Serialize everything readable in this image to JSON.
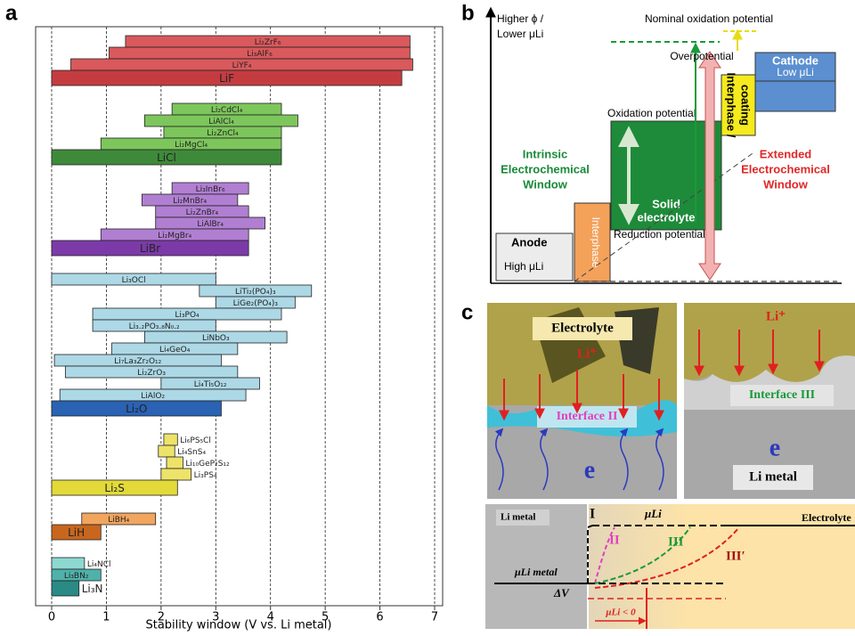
{
  "panel_labels": [
    "a",
    "b",
    "c"
  ],
  "chart_data": {
    "type": "range-bar",
    "xlabel": "Stability window (V vs. Li metal)",
    "xlim": [
      0,
      7
    ],
    "xticks": [
      0,
      1,
      2,
      3,
      4,
      5,
      6,
      7
    ],
    "grid": true,
    "groups": [
      {
        "bars": [
          {
            "name": "Li₂ZrF₆",
            "low": 1.35,
            "high": 6.55,
            "color": "#d9595c"
          },
          {
            "name": "Li₃AlF₆",
            "low": 1.05,
            "high": 6.55,
            "color": "#d9595c"
          },
          {
            "name": "LiYF₄",
            "low": 0.35,
            "high": 6.6,
            "color": "#d9595c"
          },
          {
            "name": "LiF",
            "low": 0,
            "high": 6.4,
            "color": "#c43c40"
          }
        ]
      },
      {
        "bars": [
          {
            "name": "Li₂CdCl₄",
            "low": 2.2,
            "high": 4.2,
            "color": "#7dc65c"
          },
          {
            "name": "LiAlCl₄",
            "low": 1.7,
            "high": 4.5,
            "color": "#7dc65c"
          },
          {
            "name": "Li₂ZnCl₄",
            "low": 2.05,
            "high": 4.2,
            "color": "#7dc65c"
          },
          {
            "name": "Li₂MgCl₄",
            "low": 0.9,
            "high": 4.2,
            "color": "#7dc65c"
          },
          {
            "name": "LiCl",
            "low": 0,
            "high": 4.2,
            "color": "#3e8a3a"
          }
        ]
      },
      {
        "bars": [
          {
            "name": "Li₃InBr₆",
            "low": 2.2,
            "high": 3.6,
            "color": "#b17fd2"
          },
          {
            "name": "Li₂MnBr₄",
            "low": 1.65,
            "high": 3.4,
            "color": "#b17fd2"
          },
          {
            "name": "Li₂ZnBr₄",
            "low": 1.9,
            "high": 3.6,
            "color": "#b17fd2"
          },
          {
            "name": "LiAlBr₄",
            "low": 1.9,
            "high": 3.9,
            "color": "#b17fd2"
          },
          {
            "name": "Li₂MgBr₄",
            "low": 0.9,
            "high": 3.6,
            "color": "#b17fd2"
          },
          {
            "name": "LiBr",
            "low": 0,
            "high": 3.6,
            "color": "#7b3aa8"
          }
        ]
      },
      {
        "bars": [
          {
            "name": "Li₃OCl",
            "low": 0,
            "high": 3.0,
            "color": "#add8e6"
          },
          {
            "name": "LiTi₂(PO₄)₃",
            "low": 2.7,
            "high": 4.75,
            "color": "#add8e6"
          },
          {
            "name": "LiGe₂(PO₄)₃",
            "low": 3.0,
            "high": 4.45,
            "color": "#add8e6"
          },
          {
            "name": "Li₃PO₄",
            "low": 0.75,
            "high": 4.2,
            "color": "#add8e6"
          },
          {
            "name": "Li₃.₂PO₃.₈N₀.₂",
            "low": 0.75,
            "high": 3.0,
            "color": "#add8e6"
          },
          {
            "name": "LiNbO₃",
            "low": 1.7,
            "high": 4.3,
            "color": "#add8e6"
          },
          {
            "name": "Li₄GeO₄",
            "low": 1.1,
            "high": 3.4,
            "color": "#add8e6"
          },
          {
            "name": "Li₇La₃Zr₂O₁₂",
            "low": 0.05,
            "high": 3.1,
            "color": "#add8e6"
          },
          {
            "name": "Li₂ZrO₃",
            "low": 0.25,
            "high": 3.4,
            "color": "#add8e6"
          },
          {
            "name": "Li₄Ti₅O₁₂",
            "low": 2.0,
            "high": 3.8,
            "color": "#add8e6"
          },
          {
            "name": "LiAlO₂",
            "low": 0.15,
            "high": 3.55,
            "color": "#add8e6"
          },
          {
            "name": "Li₂O",
            "low": 0,
            "high": 3.1,
            "color": "#2a62b4"
          }
        ]
      },
      {
        "bars": [
          {
            "name": "Li₆PS₅Cl",
            "low": 2.05,
            "high": 2.3,
            "color": "#eee36a"
          },
          {
            "name": "Li₄SnS₄",
            "low": 1.95,
            "high": 2.25,
            "color": "#eee36a"
          },
          {
            "name": "Li₁₀GeP₂S₁₂",
            "low": 2.1,
            "high": 2.4,
            "color": "#eee36a"
          },
          {
            "name": "Li₃PS₄",
            "low": 2.0,
            "high": 2.55,
            "color": "#eee36a"
          },
          {
            "name": "Li₂S",
            "low": 0,
            "high": 2.3,
            "color": "#e3da3a"
          }
        ]
      },
      {
        "bars": [
          {
            "name": "LiBH₄",
            "low": 0.55,
            "high": 1.9,
            "color": "#f2a55e"
          },
          {
            "name": "LiH",
            "low": 0,
            "high": 0.9,
            "color": "#c8661e"
          }
        ]
      },
      {
        "bars": [
          {
            "name": "Li₄NCl",
            "low": 0,
            "high": 0.6,
            "color": "#8ed8d2"
          },
          {
            "name": "Li₃BN₂",
            "low": 0,
            "high": 0.9,
            "color": "#4fb2aa"
          },
          {
            "name": "Li₃N",
            "low": 0,
            "high": 0.5,
            "color": "#2a8a86"
          }
        ]
      }
    ]
  },
  "diagram_b": {
    "axis_label": [
      "Higher ϕ /",
      "Lower μLi"
    ],
    "nominal": "Nominal oxidation potential",
    "overpotential": "Overpotential",
    "cathode": "Cathode",
    "cathode_sub": "Low μLi",
    "coating": [
      "Interphase /",
      "coating"
    ],
    "oxidation": "Oxidation potential",
    "intrinsic": [
      "Intrinsic",
      "Electrochemical",
      "Window"
    ],
    "extended": [
      "Extended",
      "Electrochemical",
      "Window"
    ],
    "electrolyte": [
      "Solid",
      "electrolyte"
    ],
    "interphase": "Interphase",
    "reduction": "Reduction potential",
    "anode": "Anode",
    "anode_sub": "High μLi"
  },
  "diagram_c": {
    "electrolyte": "Electrolyte",
    "li_ion_left": "Li⁺",
    "interface_2": "Interface II",
    "e_left": "e",
    "li_ion_right": "Li⁺",
    "interface_3": "Interface III",
    "e_right": "e",
    "li_metal_right": "Li metal",
    "graph_li_metal": "Li metal",
    "graph_I": "I",
    "graph_mu": "μLi",
    "graph_electrolyte": "Electrolyte",
    "graph_II": "II",
    "graph_III": "III",
    "graph_III_prime": "III′",
    "graph_mu_metal": "μLi metal",
    "graph_dv": "ΔV",
    "graph_mu_neg": "μLi < 0"
  }
}
